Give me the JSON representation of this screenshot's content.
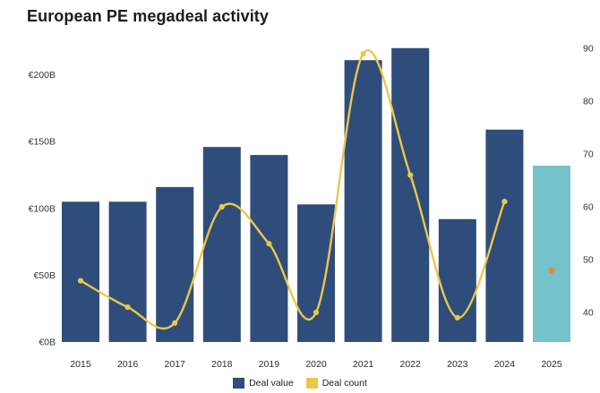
{
  "page": {
    "title": "European PE megadeal activity"
  },
  "legend": {
    "items": [
      {
        "label": "Deal value",
        "color": "#2e4d7a"
      },
      {
        "label": "Deal count",
        "color": "#edc74b"
      }
    ]
  },
  "chart_data": {
    "type": "combo-bar-line",
    "title": "European PE megadeal activity",
    "categories": [
      "2015",
      "2016",
      "2017",
      "2018",
      "2019",
      "2020",
      "2021",
      "2022",
      "2023",
      "2024",
      "2025"
    ],
    "series": [
      {
        "name": "Deal value",
        "type": "bar",
        "axis": "left",
        "unit": "EUR billions",
        "values": [
          105,
          105,
          116,
          146,
          140,
          103,
          211,
          220,
          92,
          159,
          132
        ],
        "color": "#2e4d7a",
        "estimate_color": "#74c3cb"
      },
      {
        "name": "Deal count",
        "type": "line",
        "axis": "right",
        "values": [
          46,
          41,
          38,
          60,
          53,
          40,
          89,
          66,
          39,
          61,
          48
        ],
        "color": "#edc74b",
        "estimate_color": "#dc8e3e"
      }
    ],
    "estimate_category": "2025",
    "left_axis": {
      "tick_labels": [
        "€0B",
        "€50B",
        "€100B",
        "€150B",
        "€200B"
      ],
      "tick_values": [
        0,
        50,
        100,
        150,
        200
      ],
      "range": [
        0,
        228
      ]
    },
    "right_axis": {
      "tick_labels": [
        "40",
        "50",
        "60",
        "70",
        "80",
        "90"
      ],
      "tick_values": [
        40,
        50,
        60,
        70,
        80,
        90
      ],
      "range": [
        34,
        92
      ]
    },
    "gridlines": false,
    "legend_position": "bottom-center",
    "notes": "2025 shown as estimate: teal bar with detached orange deal-count dot; yellow smoothed line with markers covers 2015-2024 only",
    "text_color": "#333333"
  }
}
